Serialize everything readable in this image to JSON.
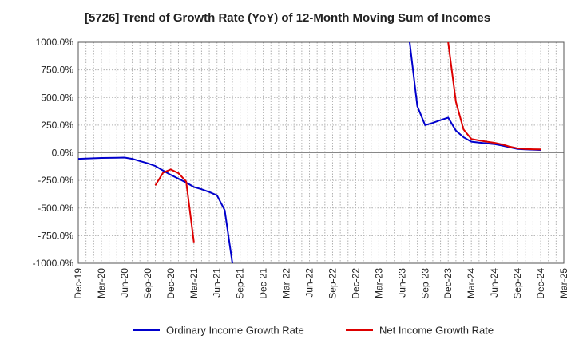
{
  "title": "[5726]  Trend of Growth Rate (YoY) of 12-Month Moving Sum of Incomes",
  "chart_data": {
    "type": "line",
    "title": "[5726]  Trend of Growth Rate (YoY) of 12-Month Moving Sum of Incomes",
    "xlabel": "",
    "ylabel": "",
    "ylim": [
      -1000,
      1000
    ],
    "y_ticks": [
      "1000.0%",
      "750.0%",
      "500.0%",
      "250.0%",
      "0.0%",
      "-250.0%",
      "-500.0%",
      "-750.0%",
      "-1000.0%"
    ],
    "y_tick_values": [
      1000,
      750,
      500,
      250,
      0,
      -250,
      -500,
      -750,
      -1000
    ],
    "x_ticks": [
      "Dec-19",
      "Mar-20",
      "Jun-20",
      "Sep-20",
      "Dec-20",
      "Mar-21",
      "Jun-21",
      "Sep-21",
      "Dec-21",
      "Mar-22",
      "Jun-22",
      "Sep-22",
      "Dec-22",
      "Mar-23",
      "Jun-23",
      "Sep-23",
      "Dec-23",
      "Mar-24",
      "Jun-24",
      "Sep-24",
      "Dec-24",
      "Mar-25"
    ],
    "x_range": [
      "2019-12",
      "2025-03"
    ],
    "grid": true,
    "legend_position": "bottom",
    "series": [
      {
        "name": "Ordinary Income Growth Rate",
        "color": "#0000cc",
        "points": [
          [
            "2019-12",
            -55
          ],
          [
            "2020-01",
            -52
          ],
          [
            "2020-02",
            -50
          ],
          [
            "2020-03",
            -47
          ],
          [
            "2020-04",
            -46
          ],
          [
            "2020-05",
            -45
          ],
          [
            "2020-06",
            -43
          ],
          [
            "2020-07",
            -55
          ],
          [
            "2020-08",
            -75
          ],
          [
            "2020-09",
            -95
          ],
          [
            "2020-10",
            -120
          ],
          [
            "2020-11",
            -160
          ],
          [
            "2020-12",
            -200
          ],
          [
            "2021-01",
            -235
          ],
          [
            "2021-02",
            -270
          ],
          [
            "2021-03",
            -310
          ],
          [
            "2021-04",
            -330
          ],
          [
            "2021-05",
            -355
          ],
          [
            "2021-06",
            -385
          ],
          [
            "2021-07",
            -520
          ],
          [
            "2021-08",
            -1000
          ]
        ]
      },
      {
        "name": "Ordinary Income Growth Rate",
        "color": "#0000cc",
        "points": [
          [
            "2023-07",
            1000
          ],
          [
            "2023-08",
            420
          ],
          [
            "2023-09",
            250
          ],
          [
            "2023-10",
            270
          ],
          [
            "2023-11",
            295
          ],
          [
            "2023-12",
            318
          ],
          [
            "2024-01",
            200
          ],
          [
            "2024-02",
            140
          ],
          [
            "2024-03",
            100
          ],
          [
            "2024-04",
            92
          ],
          [
            "2024-05",
            85
          ],
          [
            "2024-06",
            78
          ],
          [
            "2024-07",
            65
          ],
          [
            "2024-08",
            50
          ],
          [
            "2024-09",
            35
          ],
          [
            "2024-10",
            30
          ],
          [
            "2024-11",
            28
          ],
          [
            "2024-12",
            25
          ]
        ]
      },
      {
        "name": "Net Income Growth Rate",
        "color": "#dd0000",
        "points": [
          [
            "2020-10",
            -295
          ],
          [
            "2020-11",
            -180
          ],
          [
            "2020-12",
            -150
          ],
          [
            "2021-01",
            -185
          ],
          [
            "2021-02",
            -260
          ],
          [
            "2021-03",
            -810
          ]
        ]
      },
      {
        "name": "Net Income Growth Rate",
        "color": "#dd0000",
        "points": [
          [
            "2023-12",
            1000
          ],
          [
            "2024-01",
            460
          ],
          [
            "2024-02",
            210
          ],
          [
            "2024-03",
            125
          ],
          [
            "2024-04",
            112
          ],
          [
            "2024-05",
            100
          ],
          [
            "2024-06",
            90
          ],
          [
            "2024-07",
            75
          ],
          [
            "2024-08",
            55
          ],
          [
            "2024-09",
            40
          ],
          [
            "2024-10",
            35
          ],
          [
            "2024-11",
            32
          ],
          [
            "2024-12",
            30
          ]
        ]
      }
    ],
    "legend": [
      {
        "name": "Ordinary Income Growth Rate",
        "color": "#0000cc"
      },
      {
        "name": "Net Income Growth Rate",
        "color": "#dd0000"
      }
    ]
  }
}
